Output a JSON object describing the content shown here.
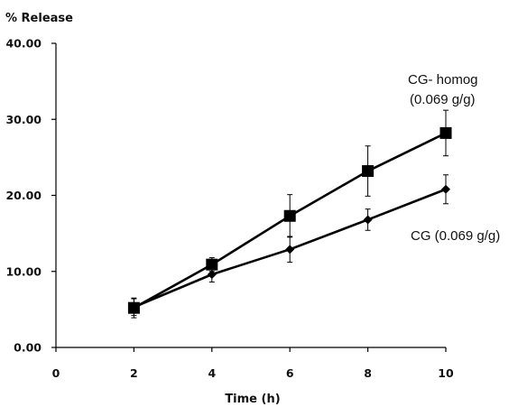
{
  "chart_data": {
    "type": "line",
    "ylabel": "% Release",
    "xlabel": "Time (h)",
    "xlim": [
      0,
      10
    ],
    "ylim": [
      0,
      40
    ],
    "x_ticks": [
      "0",
      "2",
      "4",
      "6",
      "8",
      "10"
    ],
    "y_ticks": [
      "0.00",
      "10.00",
      "20.00",
      "30.00",
      "40.00"
    ],
    "grid": false,
    "legend": "none",
    "series": [
      {
        "marker": "square",
        "color": "#000000",
        "x": [
          2,
          4,
          6,
          8,
          10
        ],
        "y": [
          5.2,
          10.9,
          17.3,
          23.2,
          28.2
        ],
        "error": [
          1.3,
          0.9,
          2.8,
          3.3,
          3.0
        ]
      },
      {
        "marker": "diamond",
        "color": "#000000",
        "x": [
          2,
          4,
          6,
          8,
          10
        ],
        "y": [
          5.3,
          9.6,
          12.9,
          16.8,
          20.8
        ],
        "error": [
          1.1,
          1.0,
          1.7,
          1.4,
          1.9
        ]
      }
    ],
    "annotations": [
      {
        "lines": [
          "CG- homog",
          "(0.069 g/g)"
        ]
      },
      {
        "lines": [
          "CG (0.069 g/g)"
        ]
      }
    ]
  }
}
